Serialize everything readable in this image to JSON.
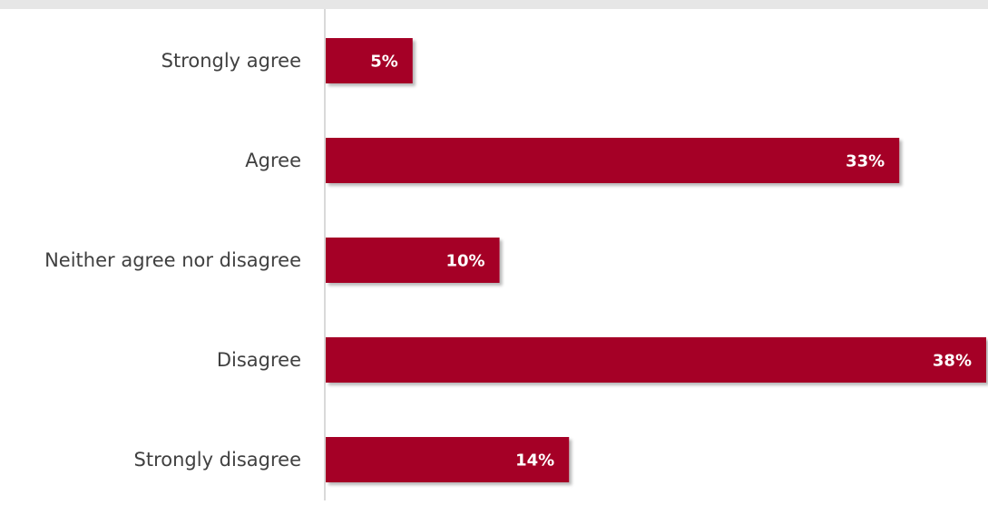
{
  "chart_data": {
    "type": "bar",
    "orientation": "horizontal",
    "categories": [
      "Strongly agree",
      "Agree",
      "Neither agree nor disagree",
      "Disagree",
      "Strongly disagree"
    ],
    "values": [
      5,
      33,
      10,
      38,
      14
    ],
    "value_labels": [
      "5%",
      "33%",
      "10%",
      "38%",
      "14%"
    ],
    "unit": "%",
    "xlim": [
      0,
      38
    ],
    "grid": false,
    "legend": "none",
    "colors": {
      "bar": "#a50026",
      "axis": "#d9d9d9",
      "label": "#404040",
      "value_label": "#ffffff",
      "top_band": "#e6e6e6"
    }
  }
}
